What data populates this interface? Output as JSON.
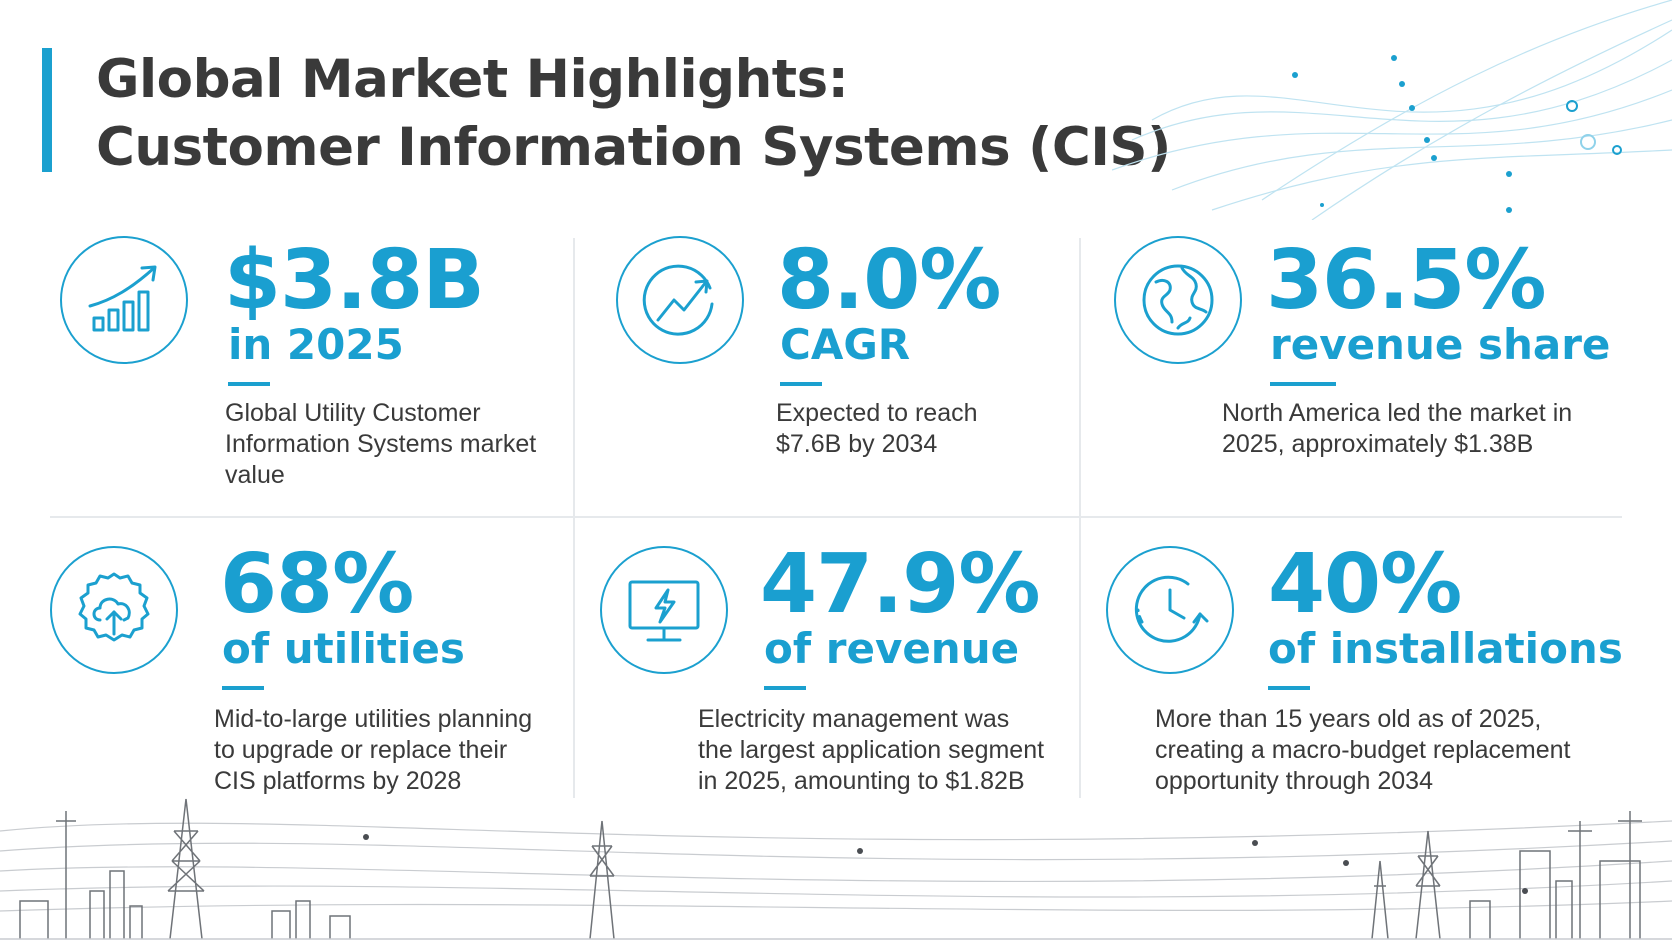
{
  "header": {
    "title_line1": "Global Market Highlights:",
    "title_line2": "Customer Information Systems (CIS)"
  },
  "stats": [
    {
      "value": "$3.8B",
      "subtitle": "in 2025",
      "description": "Global Utility Customer Information Systems market value",
      "icon": "growth-bar-chart-icon"
    },
    {
      "value": "8.0%",
      "subtitle": "CAGR",
      "description": "Expected to reach $7.6B by 2034",
      "icon": "trend-arrow-icon"
    },
    {
      "value": "36.5%",
      "subtitle": "revenue share",
      "description": "North America led the market in 2025, approximately $1.38B",
      "icon": "globe-icon"
    },
    {
      "value": "68%",
      "subtitle": "of utilities",
      "description": "Mid-to-large utilities planning to upgrade or replace their CIS platforms by 2028",
      "icon": "gear-cloud-upload-icon"
    },
    {
      "value": "47.9%",
      "subtitle": "of revenue",
      "description": "Electricity management was the largest application segment in 2025, amounting to $1.82B",
      "icon": "monitor-lightning-icon"
    },
    {
      "value": "40%",
      "subtitle": "of installations",
      "description": "More than 15 years old as of 2025, creating a macro-budget replacement opportunity through 2034",
      "icon": "clock-cycle-icon"
    }
  ],
  "colors": {
    "accent": "#1ba0cf",
    "text": "#3a3a3a"
  }
}
